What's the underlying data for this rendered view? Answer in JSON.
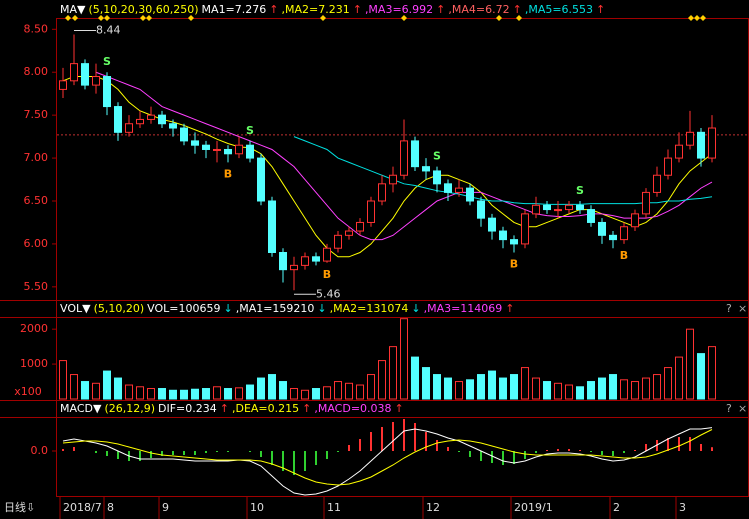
{
  "chart_data": [
    {
      "type": "candlestick",
      "header": [
        {
          "text": "MA▼",
          "color": "#ffffff"
        },
        {
          "text": "(5,10,20,30,60,250)",
          "color": "#ffff00"
        },
        {
          "text": "MA1=7.276",
          "color": "#ffffff"
        },
        {
          "text": "↑",
          "color": "#ff3232"
        },
        {
          "text": ",MA2=7.231",
          "color": "#ffff00"
        },
        {
          "text": "↑",
          "color": "#ff3232"
        },
        {
          "text": ",MA3=6.992",
          "color": "#ff40ff"
        },
        {
          "text": "↑",
          "color": "#ff3232"
        },
        {
          "text": ",MA4=6.72",
          "color": "#ff6060"
        },
        {
          "text": "↑",
          "color": "#ff3232"
        },
        {
          "text": ",MA5=6.553",
          "color": "#00e0e0"
        },
        {
          "text": "↑",
          "color": "#ff3232"
        }
      ],
      "open": [
        7.8,
        7.9,
        8.1,
        7.85,
        7.95,
        7.6,
        7.3,
        7.4,
        7.45,
        7.5,
        7.4,
        7.35,
        7.2,
        7.15,
        7.1,
        7.1,
        7.05,
        7.15,
        7.0,
        6.5,
        5.9,
        5.7,
        5.75,
        5.85,
        5.8,
        5.95,
        6.1,
        6.15,
        6.25,
        6.5,
        6.7,
        6.8,
        7.2,
        6.9,
        6.85,
        6.7,
        6.6,
        6.65,
        6.5,
        6.3,
        6.15,
        6.05,
        6.0,
        6.35,
        6.45,
        6.4,
        6.4,
        6.45,
        6.4,
        6.25,
        6.1,
        6.05,
        6.2,
        6.35,
        6.6,
        6.8,
        7.0,
        7.15,
        7.3,
        7.0
      ],
      "high": [
        8.05,
        8.44,
        8.15,
        8.1,
        8.0,
        7.65,
        7.5,
        7.55,
        7.6,
        7.55,
        7.45,
        7.4,
        7.3,
        7.2,
        7.2,
        7.15,
        7.25,
        7.2,
        7.05,
        6.55,
        5.95,
        5.85,
        5.9,
        5.9,
        6.0,
        6.15,
        6.2,
        6.3,
        6.55,
        6.8,
        6.9,
        7.45,
        7.25,
        7.0,
        6.9,
        6.75,
        6.75,
        6.7,
        6.55,
        6.35,
        6.2,
        6.1,
        6.4,
        6.55,
        6.5,
        6.5,
        6.5,
        6.5,
        6.45,
        6.3,
        6.15,
        6.25,
        6.4,
        6.65,
        6.9,
        7.1,
        7.3,
        7.55,
        7.35,
        7.5
      ],
      "low": [
        7.7,
        7.85,
        7.8,
        7.75,
        7.5,
        7.2,
        7.25,
        7.35,
        7.4,
        7.35,
        7.25,
        7.15,
        7.05,
        7.0,
        6.95,
        6.95,
        7.0,
        6.95,
        6.45,
        5.85,
        5.55,
        5.46,
        5.7,
        5.75,
        5.78,
        5.9,
        6.05,
        6.1,
        6.2,
        6.45,
        6.6,
        6.75,
        6.85,
        6.75,
        6.6,
        6.5,
        6.55,
        6.45,
        6.2,
        6.05,
        5.95,
        5.9,
        5.95,
        6.3,
        6.35,
        6.3,
        6.35,
        6.35,
        6.2,
        6.0,
        5.95,
        6.0,
        6.15,
        6.3,
        6.55,
        6.75,
        6.95,
        7.1,
        6.9,
        6.95
      ],
      "close": [
        7.9,
        8.1,
        7.85,
        7.95,
        7.6,
        7.3,
        7.4,
        7.45,
        7.5,
        7.4,
        7.35,
        7.2,
        7.15,
        7.1,
        7.1,
        7.05,
        7.15,
        7.0,
        6.5,
        5.9,
        5.7,
        5.75,
        5.85,
        5.8,
        5.95,
        6.1,
        6.15,
        6.25,
        6.5,
        6.7,
        6.8,
        7.2,
        6.9,
        6.85,
        6.7,
        6.6,
        6.65,
        6.5,
        6.3,
        6.15,
        6.05,
        6.0,
        6.35,
        6.45,
        6.4,
        6.4,
        6.45,
        6.4,
        6.25,
        6.1,
        6.05,
        6.2,
        6.35,
        6.6,
        6.8,
        7.0,
        7.15,
        7.3,
        7.0,
        7.35
      ],
      "lines": [
        {
          "color": "#ffff00",
          "values": [
            7.9,
            7.95,
            7.95,
            7.95,
            7.9,
            7.8,
            7.65,
            7.55,
            7.5,
            7.45,
            7.42,
            7.38,
            7.33,
            7.28,
            7.22,
            7.17,
            7.13,
            7.12,
            7.05,
            6.9,
            6.7,
            6.5,
            6.3,
            6.1,
            5.95,
            5.85,
            5.85,
            5.9,
            6.0,
            6.15,
            6.3,
            6.5,
            6.65,
            6.75,
            6.8,
            6.8,
            6.75,
            6.7,
            6.6,
            6.45,
            6.35,
            6.25,
            6.2,
            6.2,
            6.25,
            6.3,
            6.35,
            6.4,
            6.4,
            6.35,
            6.3,
            6.25,
            6.2,
            6.25,
            6.35,
            6.5,
            6.7,
            6.85,
            6.95,
            7.05
          ]
        },
        {
          "color": "#ff40ff",
          "values": [
            null,
            null,
            null,
            8.0,
            7.95,
            7.9,
            7.85,
            7.8,
            7.7,
            7.6,
            7.55,
            7.5,
            7.45,
            7.4,
            7.35,
            7.3,
            7.25,
            7.2,
            7.15,
            7.1,
            7.0,
            6.9,
            6.75,
            6.6,
            6.45,
            6.3,
            6.2,
            6.1,
            6.05,
            6.05,
            6.1,
            6.2,
            6.3,
            6.4,
            6.5,
            6.55,
            6.6,
            6.6,
            6.6,
            6.55,
            6.5,
            6.45,
            6.4,
            6.35,
            6.33,
            6.32,
            6.32,
            6.33,
            6.35,
            6.35,
            6.33,
            6.3,
            6.3,
            6.3,
            6.32,
            6.38,
            6.45,
            6.55,
            6.65,
            6.72
          ]
        },
        {
          "color": "#00e0e0",
          "values": [
            null,
            null,
            null,
            null,
            null,
            null,
            null,
            null,
            null,
            null,
            null,
            null,
            null,
            null,
            null,
            null,
            null,
            null,
            null,
            null,
            null,
            7.25,
            7.2,
            7.15,
            7.1,
            7.0,
            6.95,
            6.9,
            6.85,
            6.8,
            6.75,
            6.7,
            6.68,
            6.65,
            6.62,
            6.6,
            6.58,
            6.55,
            6.52,
            6.5,
            6.5,
            6.48,
            6.47,
            6.47,
            6.46,
            6.46,
            6.46,
            6.46,
            6.47,
            6.47,
            6.47,
            6.47,
            6.47,
            6.48,
            6.48,
            6.5,
            6.5,
            6.52,
            6.53,
            6.55
          ]
        }
      ],
      "extremes": [
        {
          "index": 1,
          "at": "high",
          "label": "8.44"
        },
        {
          "index": 21,
          "at": "low",
          "label": "5.46"
        }
      ],
      "signals": [
        {
          "index": 4,
          "label": "S"
        },
        {
          "index": 15,
          "label": "B"
        },
        {
          "index": 17,
          "label": "S"
        },
        {
          "index": 24,
          "label": "B"
        },
        {
          "index": 34,
          "label": "S"
        },
        {
          "index": 41,
          "label": "B"
        },
        {
          "index": 47,
          "label": "S"
        },
        {
          "index": 51,
          "label": "B"
        }
      ],
      "price_line": 7.27,
      "ylim": [
        5.37,
        8.62
      ],
      "yticks": [
        {
          "value": 8.5,
          "label": "8.50"
        },
        {
          "value": 8.0,
          "label": "8.00"
        },
        {
          "value": 7.5,
          "label": "7.50"
        },
        {
          "value": 7.0,
          "label": "7.00"
        },
        {
          "value": 6.5,
          "label": "6.50"
        },
        {
          "value": 6.0,
          "label": "6.00"
        },
        {
          "value": 5.5,
          "label": "5.50"
        }
      ]
    },
    {
      "type": "volume",
      "header": [
        {
          "text": "VOL▼",
          "color": "#ffffff"
        },
        {
          "text": "(5,10,20)",
          "color": "#ffff00"
        },
        {
          "text": "VOL=100659",
          "color": "#ffffff"
        },
        {
          "text": "↓",
          "color": "#00e0e0"
        },
        {
          "text": ",MA1=159210",
          "color": "#ffffff"
        },
        {
          "text": "↓",
          "color": "#00e0e0"
        },
        {
          "text": ",MA2=131074",
          "color": "#ffff00"
        },
        {
          "text": "↓",
          "color": "#00e0e0"
        },
        {
          "text": ",MA3=114069",
          "color": "#ff40ff"
        },
        {
          "text": "↑",
          "color": "#ff3232"
        }
      ],
      "values": [
        1100,
        700,
        500,
        450,
        800,
        600,
        400,
        350,
        300,
        300,
        250,
        250,
        280,
        300,
        350,
        300,
        320,
        400,
        600,
        700,
        500,
        300,
        250,
        300,
        350,
        500,
        450,
        400,
        700,
        1100,
        1500,
        2300,
        1200,
        900,
        700,
        600,
        500,
        550,
        700,
        800,
        600,
        700,
        900,
        600,
        500,
        450,
        400,
        350,
        500,
        600,
        700,
        550,
        500,
        600,
        700,
        900,
        1200,
        2000,
        1300,
        1500
      ],
      "unit_label": "x100",
      "ylim": [
        0,
        2320
      ],
      "yticks": [
        2000,
        1000
      ]
    },
    {
      "type": "macd",
      "header": [
        {
          "text": "MACD▼",
          "color": "#ffffff"
        },
        {
          "text": "(26,12,9)",
          "color": "#ffff00"
        },
        {
          "text": "DIF=0.234",
          "color": "#ffffff"
        },
        {
          "text": "↑",
          "color": "#ff3232"
        },
        {
          "text": ",DEA=0.215",
          "color": "#ffff00"
        },
        {
          "text": "↑",
          "color": "#ff3232"
        },
        {
          "text": ",MACD=0.038",
          "color": "#ff40ff"
        },
        {
          "text": "↑",
          "color": "#ff3232"
        }
      ],
      "values": [
        0.02,
        0.04,
        0,
        -0.02,
        -0.05,
        -0.08,
        -0.1,
        -0.1,
        -0.07,
        -0.05,
        -0.04,
        -0.04,
        -0.04,
        -0.02,
        -0.01,
        -0.01,
        0,
        -0.01,
        -0.06,
        -0.14,
        -0.2,
        -0.24,
        -0.2,
        -0.14,
        -0.08,
        -0.01,
        0.06,
        0.12,
        0.19,
        0.24,
        0.29,
        0.32,
        0.28,
        0.19,
        0.11,
        0.04,
        -0.01,
        -0.06,
        -0.1,
        -0.12,
        -0.14,
        -0.13,
        -0.08,
        -0.02,
        0.01,
        0.02,
        0.02,
        0.01,
        -0.01,
        -0.04,
        -0.05,
        -0.02,
        0.01,
        0.07,
        0.11,
        0.13,
        0.14,
        0.14,
        0.07,
        0.038
      ],
      "dif": [
        0.1,
        0.12,
        0.1,
        0.08,
        0.05,
        0.0,
        -0.05,
        -0.08,
        -0.08,
        -0.08,
        -0.08,
        -0.09,
        -0.1,
        -0.1,
        -0.1,
        -0.1,
        -0.09,
        -0.1,
        -0.15,
        -0.25,
        -0.35,
        -0.42,
        -0.44,
        -0.43,
        -0.4,
        -0.35,
        -0.28,
        -0.2,
        -0.1,
        0.0,
        0.1,
        0.2,
        0.22,
        0.2,
        0.17,
        0.13,
        0.1,
        0.05,
        0.0,
        -0.05,
        -0.1,
        -0.12,
        -0.1,
        -0.06,
        -0.03,
        -0.02,
        -0.02,
        -0.03,
        -0.05,
        -0.08,
        -0.1,
        -0.09,
        -0.06,
        0.0,
        0.06,
        0.12,
        0.17,
        0.22,
        0.22,
        0.234
      ],
      "dea": [
        0.08,
        0.09,
        0.1,
        0.1,
        0.09,
        0.07,
        0.04,
        0.01,
        -0.02,
        -0.04,
        -0.05,
        -0.06,
        -0.07,
        -0.08,
        -0.09,
        -0.09,
        -0.09,
        -0.09,
        -0.1,
        -0.13,
        -0.17,
        -0.22,
        -0.27,
        -0.31,
        -0.33,
        -0.34,
        -0.33,
        -0.3,
        -0.26,
        -0.2,
        -0.14,
        -0.07,
        -0.01,
        0.04,
        0.08,
        0.1,
        0.11,
        0.1,
        0.08,
        0.05,
        0.02,
        -0.01,
        -0.03,
        -0.04,
        -0.04,
        -0.04,
        -0.04,
        -0.04,
        -0.04,
        -0.05,
        -0.06,
        -0.07,
        -0.07,
        -0.06,
        -0.03,
        0.01,
        0.05,
        0.1,
        0.16,
        0.215
      ],
      "ylim": [
        -0.45,
        0.33
      ],
      "yticks": [
        {
          "value": 0,
          "label": "0.0"
        }
      ],
      "period_label": "日线⇩",
      "x_labels": [
        {
          "index": 0,
          "label": "2018/7"
        },
        {
          "index": 4,
          "label": "8"
        },
        {
          "index": 9,
          "label": "9"
        },
        {
          "index": 17,
          "label": "10"
        },
        {
          "index": 24,
          "label": "11"
        },
        {
          "index": 33,
          "label": "12"
        },
        {
          "index": 41,
          "label": "2019/1"
        },
        {
          "index": 50,
          "label": "2"
        },
        {
          "index": 56,
          "label": "3"
        }
      ]
    }
  ]
}
